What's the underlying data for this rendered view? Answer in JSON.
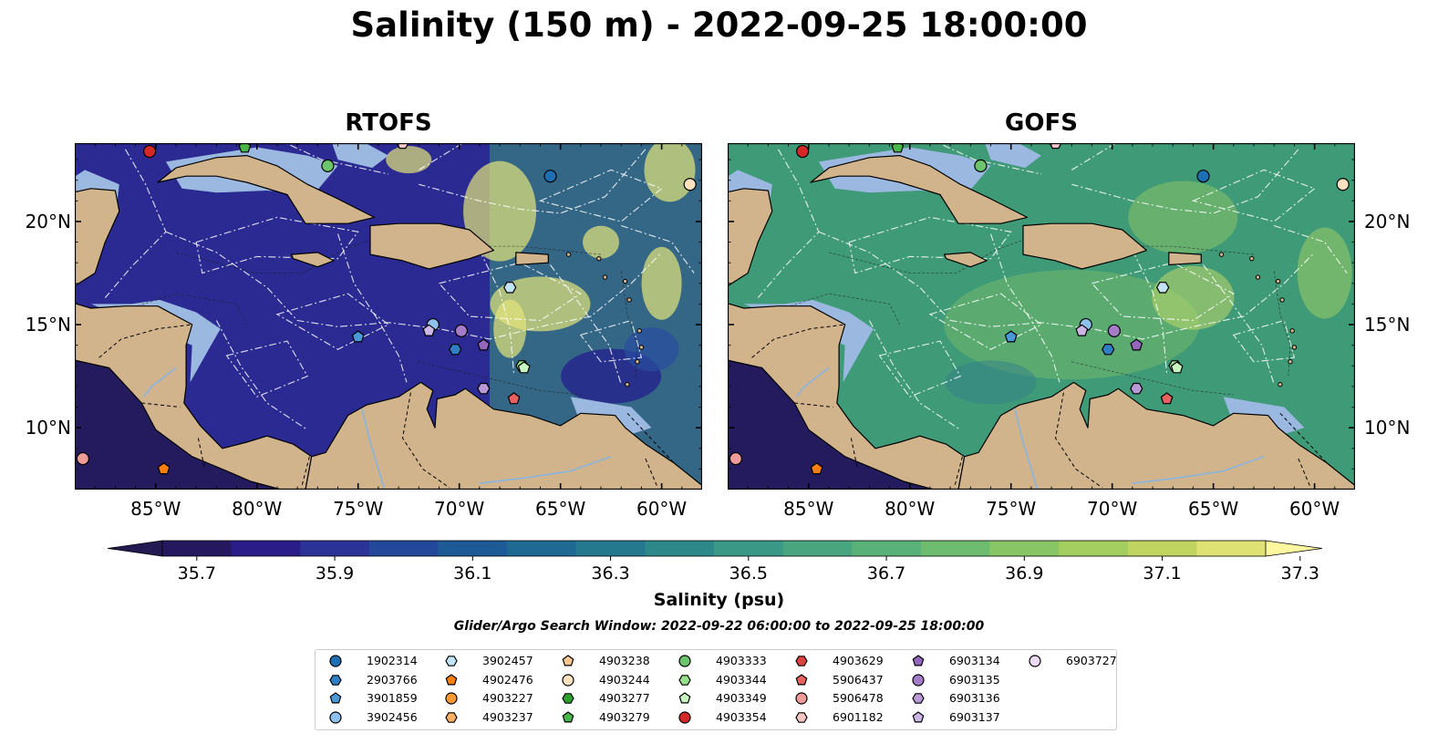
{
  "title": "Salinity (150 m) - 2022-09-25 18:00:00",
  "panels": [
    {
      "id": "rtofs",
      "title": "RTOFS",
      "field_color": "#2a2a92"
    },
    {
      "id": "gofs",
      "title": "GOFS",
      "field_color": "#3f9a78"
    }
  ],
  "map": {
    "lon_range": [
      -89,
      -58
    ],
    "lat_range": [
      7,
      23.8
    ],
    "lon_ticks": [
      "85°W",
      "80°W",
      "75°W",
      "70°W",
      "65°W",
      "60°W"
    ],
    "lon_tick_values": [
      -85,
      -80,
      -75,
      -70,
      -65,
      -60
    ],
    "lat_ticks": [
      "10°N",
      "15°N",
      "20°N"
    ],
    "lat_tick_values": [
      10,
      15,
      20
    ],
    "colors": {
      "land": "#d2b48c",
      "shelf": "#9ab8e0",
      "deep": "#241a6b",
      "eez": "#ffffff"
    }
  },
  "colorbar": {
    "label": "Salinity (psu)",
    "min": 35.7,
    "max": 37.3,
    "ticks": [
      "35.7",
      "35.9",
      "36.1",
      "36.3",
      "36.5",
      "36.7",
      "36.9",
      "37.1",
      "37.3"
    ],
    "colors": [
      "#26185f",
      "#2a1d8a",
      "#2b3298",
      "#24489a",
      "#1e5a96",
      "#1f6a92",
      "#24798e",
      "#2d888a",
      "#3a9886",
      "#48a57f",
      "#58b178",
      "#6ebc6f",
      "#88c564",
      "#a3cd5e",
      "#c0d560",
      "#dde272"
    ],
    "under_color": "#241a52",
    "over_color": "#fdf8a0"
  },
  "search_window": "Glider/Argo Search Window: 2022-09-22 06:00:00 to 2022-09-25 18:00:00",
  "floats": [
    {
      "id": "1902314",
      "marker": "circle",
      "color": "#1f6fb4",
      "lon": -65.5,
      "lat": 22.2
    },
    {
      "id": "2903766",
      "marker": "hexagon",
      "color": "#2f7fc4",
      "lon": -70.2,
      "lat": 13.8
    },
    {
      "id": "3901859",
      "marker": "pentagon",
      "color": "#4b9ad8",
      "lon": -75.0,
      "lat": 14.4
    },
    {
      "id": "3902456",
      "marker": "circle",
      "color": "#8ec1ec",
      "lon": -71.3,
      "lat": 15.0
    },
    {
      "id": "3902457",
      "marker": "hexagon",
      "color": "#c3e3f7",
      "lon": -67.5,
      "lat": 16.8
    },
    {
      "id": "4902476",
      "marker": "pentagon",
      "color": "#ff7f0e",
      "lon": -84.6,
      "lat": 8.0
    },
    {
      "id": "4903227",
      "marker": "circle",
      "color": "#ff9a30",
      "lon": -81.0,
      "lat": 24.3
    },
    {
      "id": "4903237",
      "marker": "hexagon",
      "color": "#ffb060",
      "lon": -73.0,
      "lat": 24.4
    },
    {
      "id": "4903238",
      "marker": "pentagon",
      "color": "#ffc890",
      "lon": -78.0,
      "lat": 24.5
    },
    {
      "id": "4903244",
      "marker": "circle",
      "color": "#ffe0c0",
      "lon": -58.6,
      "lat": 21.8
    },
    {
      "id": "4903277",
      "marker": "hexagon",
      "color": "#2ca02c",
      "lon": -77.2,
      "lat": 24.2
    },
    {
      "id": "4903279",
      "marker": "pentagon",
      "color": "#49b649",
      "lon": -80.6,
      "lat": 23.6
    },
    {
      "id": "4903333",
      "marker": "circle",
      "color": "#6cc56c",
      "lon": -76.5,
      "lat": 22.7
    },
    {
      "id": "4903344",
      "marker": "hexagon",
      "color": "#98df8a",
      "lon": -66.9,
      "lat": 13.0
    },
    {
      "id": "4903349",
      "marker": "pentagon",
      "color": "#c9f5c0",
      "lon": -66.8,
      "lat": 12.9
    },
    {
      "id": "4903354",
      "marker": "circle",
      "color": "#d62728",
      "lon": -85.3,
      "lat": 23.4
    },
    {
      "id": "4903629",
      "marker": "hexagon",
      "color": "#e04040",
      "lon": -62.0,
      "lat": 24.4
    },
    {
      "id": "5906437",
      "marker": "pentagon",
      "color": "#e86060",
      "lon": -67.3,
      "lat": 11.4
    },
    {
      "id": "5906478",
      "marker": "circle",
      "color": "#f19a9a",
      "lon": -88.6,
      "lat": 8.5
    },
    {
      "id": "6901182",
      "marker": "hexagon",
      "color": "#f9c6c6",
      "lon": -72.8,
      "lat": 23.8
    },
    {
      "id": "6903134",
      "marker": "pentagon",
      "color": "#9467bd",
      "lon": -68.8,
      "lat": 14.0
    },
    {
      "id": "6903135",
      "marker": "circle",
      "color": "#a57cc8",
      "lon": -69.9,
      "lat": 14.7
    },
    {
      "id": "6903136",
      "marker": "hexagon",
      "color": "#b99ad6",
      "lon": -68.8,
      "lat": 11.9
    },
    {
      "id": "6903137",
      "marker": "pentagon",
      "color": "#cdb7e6",
      "lon": -71.5,
      "lat": 14.7
    },
    {
      "id": "6903727",
      "marker": "circle",
      "color": "#ecdaf5",
      "lon": -59.0,
      "lat": 24.6
    }
  ]
}
